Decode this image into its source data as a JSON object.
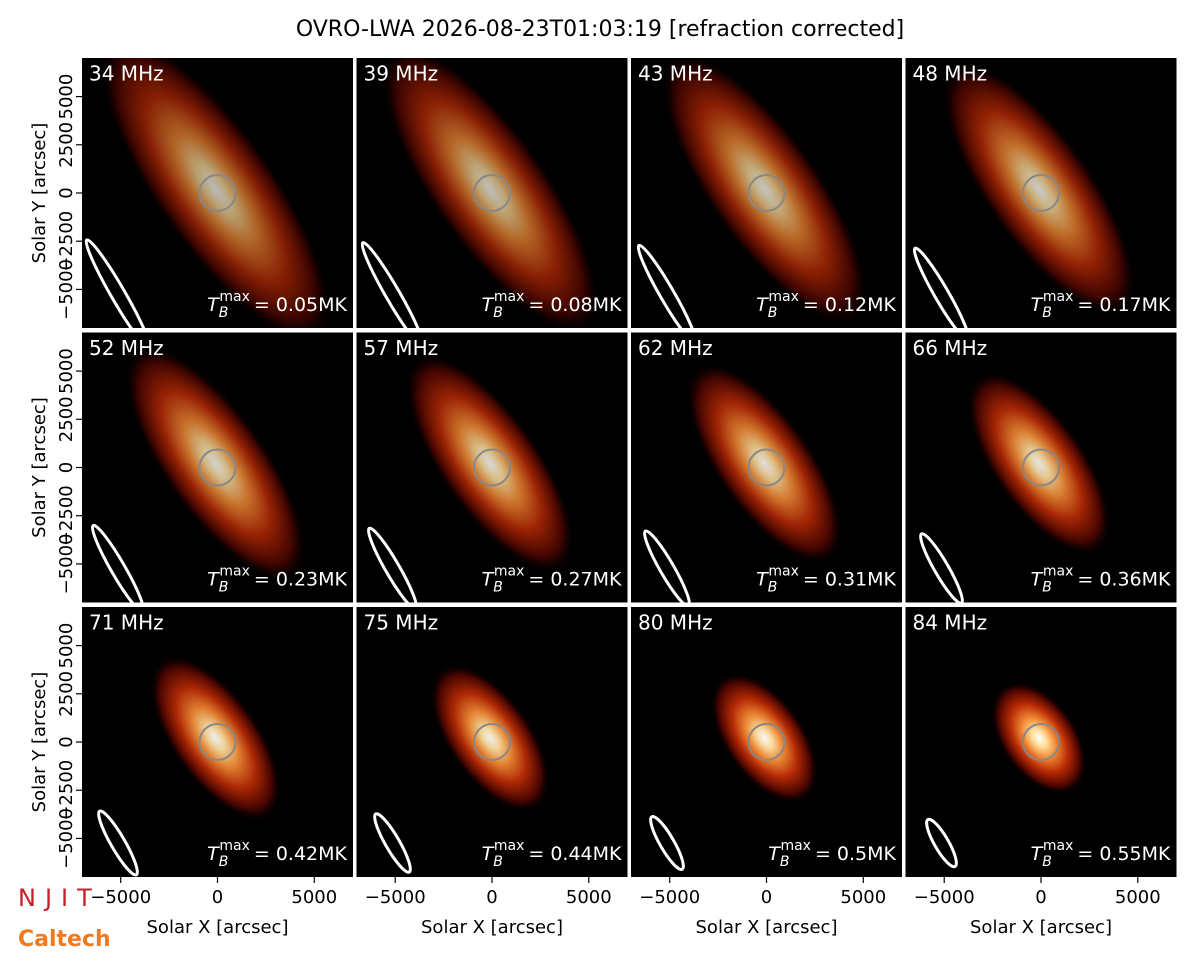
{
  "title": "OVRO-LWA 2026-08-23T01:03:19 [refraction corrected]",
  "logos": [
    "NJIT",
    "Caltech"
  ],
  "axes": {
    "xlabel": "Solar X [arcsec]",
    "ylabel": "Solar Y [arcsec]",
    "xlim": [
      -7000,
      7000
    ],
    "ylim": [
      -7000,
      7000
    ],
    "xticks": [
      {
        "value": -5000,
        "label": "−5000"
      },
      0,
      5000
    ],
    "yticks": [
      {
        "value": -5000,
        "label": "−5000"
      },
      {
        "value": -2500,
        "label": "−2500"
      },
      0,
      2500,
      5000
    ],
    "tb_symbol": "T",
    "tb_sub": "B",
    "tb_sup": "max"
  },
  "chart_data": [
    {
      "type": "image",
      "label": "34 MHz",
      "tb_max": 0.05,
      "tb_max_label": "= 0.05MK"
    },
    {
      "type": "image",
      "label": "39 MHz",
      "tb_max": 0.08,
      "tb_max_label": "= 0.08MK"
    },
    {
      "type": "image",
      "label": "43 MHz",
      "tb_max": 0.12,
      "tb_max_label": "= 0.12MK"
    },
    {
      "type": "image",
      "label": "48 MHz",
      "tb_max": 0.17,
      "tb_max_label": "= 0.17MK"
    },
    {
      "type": "image",
      "label": "52 MHz",
      "tb_max": 0.23,
      "tb_max_label": "= 0.23MK"
    },
    {
      "type": "image",
      "label": "57 MHz",
      "tb_max": 0.27,
      "tb_max_label": "= 0.27MK"
    },
    {
      "type": "image",
      "label": "62 MHz",
      "tb_max": 0.31,
      "tb_max_label": "= 0.31MK"
    },
    {
      "type": "image",
      "label": "66 MHz",
      "tb_max": 0.36,
      "tb_max_label": "= 0.36MK"
    },
    {
      "type": "image",
      "label": "71 MHz",
      "tb_max": 0.42,
      "tb_max_label": "= 0.42MK"
    },
    {
      "type": "image",
      "label": "75 MHz",
      "tb_max": 0.44,
      "tb_max_label": "= 0.44MK"
    },
    {
      "type": "image",
      "label": "80 MHz",
      "tb_max": 0.5,
      "tb_max_label": "= 0.5MK"
    },
    {
      "type": "image",
      "label": "84 MHz",
      "tb_max": 0.55,
      "tb_max_label": "= 0.55MK"
    }
  ]
}
